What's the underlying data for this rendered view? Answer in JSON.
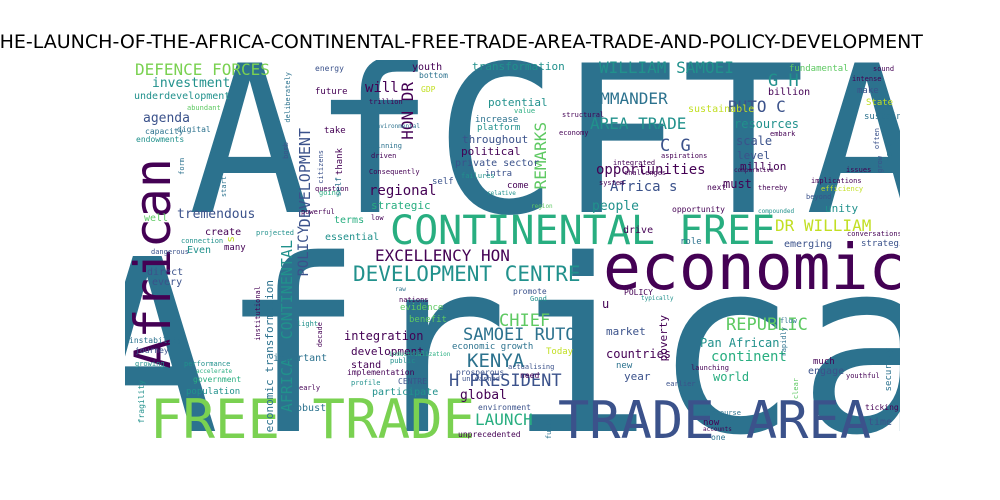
{
  "title": "THE-LAUNCH-OF-THE-AFRICA-CONTINENTAL-FREE-TRADE-AREA-TRADE-AND-POLICY-DEVELOPMENT",
  "palette": {
    "dark_purple": "#440154",
    "indigo": "#3b528b",
    "teal": "#2c728e",
    "green_teal": "#21918c",
    "sea_green": "#28ae80",
    "green": "#5ec962",
    "light_green": "#7ad151",
    "yellow": "#c2df23"
  },
  "words": {
    "africa": "Africa",
    "afcfta": "AfCFTA",
    "economic": "economic",
    "free_trade": "FREE TRADE",
    "trade_area": "TRADE AREA",
    "continental_free": "CONTINENTAL FREE",
    "african": "African",
    "development_centre": "DEVELOPMENT CENTRE",
    "excellency_hon": "EXCELLENCY HON",
    "defence_forces": "DEFENCE FORCES",
    "william_samoei": "WILLIAM SAMOEI",
    "commander": "COMMANDER",
    "area_trade": "AREA TRADE",
    "ruto_c": "RUTO C",
    "g_h": "G H",
    "c_g": "C G",
    "dr_william": "DR WILLIAM",
    "republic": "REPUBLIC",
    "samoei_ruto": "SAMOEI RUTO",
    "kenya": "KENYA",
    "h_president": "H PRESIDENT",
    "launch": "LAUNCH",
    "chief": "CHIEF",
    "remarks": "REMARKS",
    "hon_dr": "HON DR",
    "development_upper": "DEVELOPMENT",
    "policy_upper": "POLICY",
    "continental_upper": "CONTINENTAL",
    "africa_upper": "AFRICA",
    "investment": "investment",
    "agenda": "agenda",
    "underdevelopment": "underdevelopment",
    "capacity": "capacity",
    "endowments": "endowments",
    "digital": "digital",
    "abundant": "abundant",
    "energy": "energy",
    "future": "future",
    "will": "will",
    "deliberately": "deliberately",
    "youth": "youth",
    "bottom": "bottom",
    "gdp": "GDP",
    "transformation": "transformation",
    "trillion": "trillion",
    "potential": "potential",
    "value": "value",
    "increase": "increase",
    "platform": "platform",
    "throughout": "throughout",
    "political": "political",
    "private_sector": "private sector",
    "intra": "intra",
    "come": "come",
    "self": "self",
    "opportunities": "opportunities",
    "africa_s": "Africa s",
    "people": "people",
    "sustainable": "sustainable",
    "resources": "resources",
    "scale": "scale",
    "level": "level",
    "million": "million",
    "billion": "billion",
    "must": "must",
    "fundamental": "fundamental",
    "make": "make",
    "state": "State",
    "sustain": "sustain",
    "intense": "intense",
    "sound": "sound",
    "moment": "moment",
    "often": "often",
    "issues": "issues",
    "grow": "grow",
    "implications": "implications",
    "efficiency": "efficiency",
    "beyond": "beyond",
    "unity": "unity",
    "next": "next",
    "comparative": "comparative",
    "compounded": "compounded",
    "embark": "embark",
    "thereby": "thereby",
    "opportunity": "opportunity",
    "aspirations": "aspirations",
    "challenges": "challenges",
    "system": "system",
    "structural": "structural",
    "economy": "economy",
    "integrated": "integrated",
    "strategic": "strategic",
    "regional": "regional",
    "terms": "terms",
    "low": "low",
    "essential": "essential",
    "tremendous": "tremendous",
    "create": "create",
    "well": "well",
    "connection": "connection",
    "dangerous": "dangerous",
    "even": "Even",
    "many": "many",
    "direct": "direct",
    "every": "every",
    "economic_transformation": "economic transformation",
    "integration": "integration",
    "development": "development",
    "stand": "stand",
    "implementation": "implementation",
    "centre": "CENTRE",
    "participate": "participate",
    "profile": "profile",
    "global": "global",
    "promote": "promote",
    "evidence": "evidence",
    "benefit": "benefit",
    "economic_growth": "economic growth",
    "industrialization": "industrialization",
    "prosperous": "prosperous",
    "unleashed": "unleashed",
    "actualising": "actualising",
    "need": "need",
    "environment": "environment",
    "unprecedented": "unprecedented",
    "today": "Today",
    "countries": "countries",
    "market": "market",
    "poverty": "poverty",
    "pan_african": "Pan African",
    "continent": "continent",
    "world": "world",
    "year": "year",
    "new": "new",
    "launching": "launching",
    "earlier": "earlier",
    "strategies": "strategies",
    "conversations": "conversations",
    "emerging": "emerging",
    "engage": "engage",
    "much": "much",
    "flow": "flow",
    "security": "security",
    "youthful": "youthful",
    "rapidly": "rapidly",
    "clear": "clear",
    "ticking": "ticking",
    "time": "time",
    "discourse": "discourse",
    "now": "now",
    "one": "one",
    "accounts": "accounts",
    "role": "role",
    "drive": "drive",
    "instability": "instability",
    "journey": "journey",
    "growing": "growing",
    "performance": "performance",
    "accelerate": "accelerate",
    "government": "government",
    "population": "population",
    "fragility": "fragility",
    "robust": "robust",
    "important": "important",
    "decade": "decade",
    "early": "early",
    "light": "light",
    "institutional": "institutional",
    "projected": "projected",
    "start": "start",
    "powerful": "powerful",
    "going": "going",
    "question": "question",
    "citizens": "citizens",
    "bomb": "bomb",
    "take": "take",
    "thank": "thank",
    "beginning": "beginning",
    "driven": "driven",
    "consequently": "Consequently",
    "environmental": "environmental",
    "failures": "failures",
    "relative": "relative",
    "region": "region",
    "good": "Good",
    "nations": "nations",
    "raw": "raw",
    "public": "public",
    "typically": "typically",
    "fully": "fully",
    "policy_upper_small": "POLICY",
    "form": "form",
    "u": "u",
    "s": "s"
  }
}
